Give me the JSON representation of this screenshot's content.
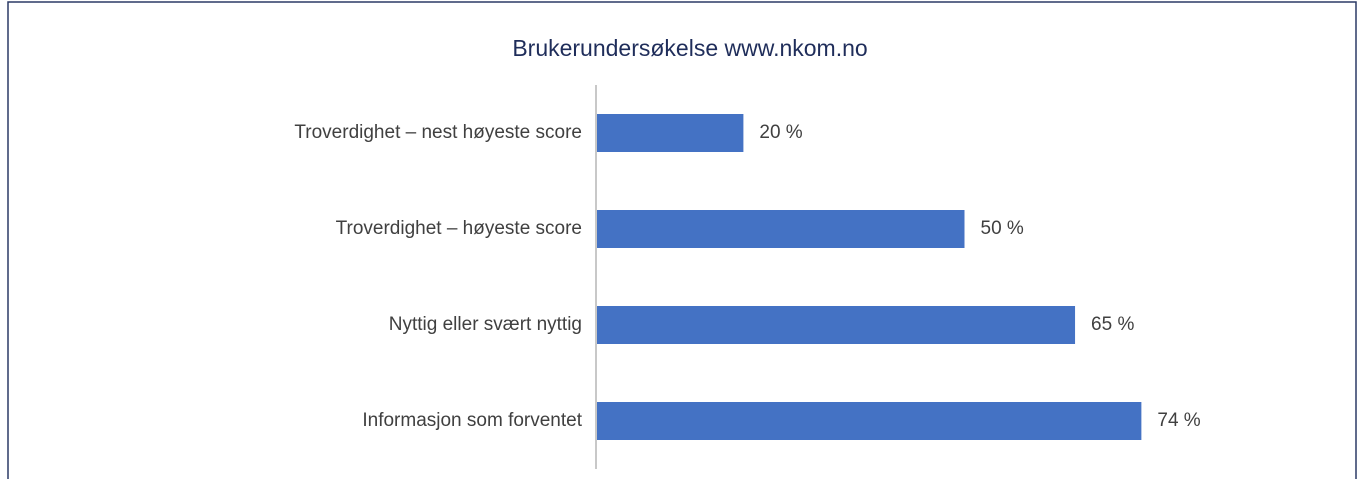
{
  "chart_data": {
    "type": "barh",
    "title": "Brukerundersøkelse www.nkom.no",
    "categories": [
      "Troverdighet – nest høyeste score",
      "Troverdighet – høyeste score",
      "Nyttig eller svært nyttig",
      "Informasjon som forventet"
    ],
    "values": [
      20,
      50,
      65,
      74
    ],
    "value_labels": [
      "20 %",
      "50 %",
      "65 %",
      "74 %"
    ],
    "color": "#4472c4",
    "xlim": [
      0,
      100
    ]
  }
}
